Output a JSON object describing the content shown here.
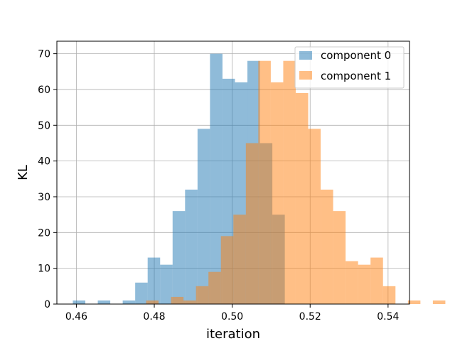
{
  "chart_data": {
    "type": "bar",
    "chart_kind": "overlapping-histogram",
    "title": "",
    "xlabel": "iteration",
    "ylabel": "KL",
    "xlim": [
      0.455,
      0.5455
    ],
    "ylim": [
      0,
      73.5
    ],
    "xticks": [
      0.46,
      0.48,
      0.5,
      0.52,
      0.54
    ],
    "xtick_labels": [
      "0.46",
      "0.48",
      "0.50",
      "0.52",
      "0.54"
    ],
    "yticks": [
      0,
      10,
      20,
      30,
      40,
      50,
      60,
      70
    ],
    "ytick_labels": [
      "0",
      "10",
      "20",
      "30",
      "40",
      "50",
      "60",
      "70"
    ],
    "grid": true,
    "legend_position": "top-right",
    "series": [
      {
        "name": "component 0",
        "color": "#1f77b4",
        "opacity": 0.5,
        "bin_start": 0.4591,
        "bin_width": 0.0032,
        "values": [
          1,
          0,
          1,
          0,
          1,
          6,
          13,
          11,
          26,
          32,
          49,
          70,
          63,
          62,
          68,
          45,
          25
        ]
      },
      {
        "name": "component 1",
        "color": "#ff7f0e",
        "opacity": 0.5,
        "bin_start": 0.4779,
        "bin_width": 0.0032,
        "values": [
          1,
          0,
          2,
          1,
          5,
          9,
          19,
          25,
          45,
          68,
          62,
          68,
          59,
          49,
          32,
          26,
          12,
          11,
          13,
          5,
          0,
          1,
          0,
          1
        ]
      }
    ]
  }
}
